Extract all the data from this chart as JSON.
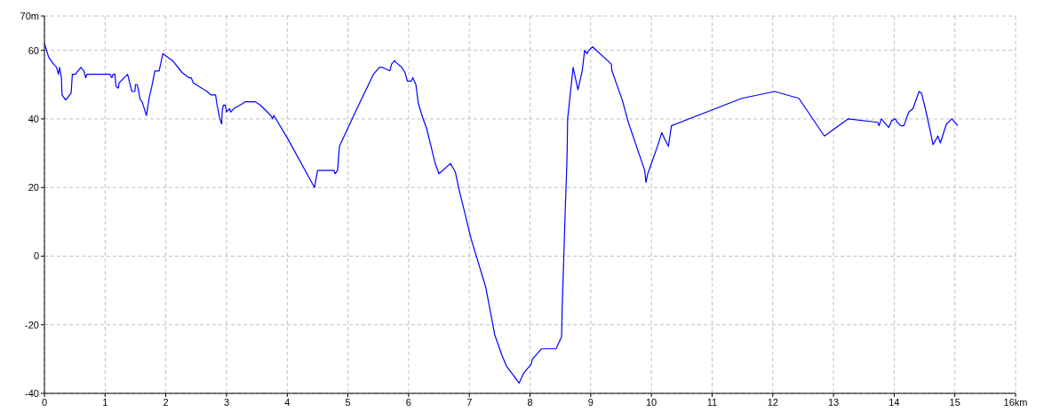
{
  "chart_data": {
    "type": "line",
    "x": [
      0,
      0.07,
      0.15,
      0.2,
      0.23,
      0.25,
      0.28,
      0.29,
      0.35,
      0.44,
      0.46,
      0.51,
      0.6,
      0.65,
      0.68,
      0.7,
      1.08,
      1.11,
      1.13,
      1.16,
      1.18,
      1.22,
      1.23,
      1.37,
      1.44,
      1.49,
      1.5,
      1.53,
      1.58,
      1.61,
      1.68,
      1.73,
      1.77,
      1.82,
      1.89,
      1.95,
      1.99,
      2.11,
      2.27,
      2.38,
      2.42,
      2.45,
      2.68,
      2.74,
      2.82,
      2.84,
      2.89,
      2.92,
      2.93,
      2.95,
      2.98,
      3.0,
      3.05,
      3.07,
      3.12,
      3.27,
      3.31,
      3.47,
      3.56,
      3.73,
      3.76,
      3.78,
      4.0,
      4.45,
      4.5,
      4.77,
      4.79,
      4.83,
      4.86,
      5.11,
      5.42,
      5.52,
      5.57,
      5.69,
      5.72,
      5.77,
      5.79,
      5.89,
      5.94,
      5.98,
      6.04,
      6.07,
      6.12,
      6.16,
      6.23,
      6.3,
      6.37,
      6.43,
      6.5,
      6.69,
      6.77,
      6.83,
      6.92,
      7.03,
      7.27,
      7.42,
      7.54,
      7.61,
      7.78,
      7.82,
      7.9,
      7.95,
      8.02,
      8.04,
      8.19,
      8.43,
      8.52,
      8.53,
      8.56,
      8.58,
      8.61,
      8.62,
      8.71,
      8.79,
      8.86,
      8.9,
      8.94,
      8.97,
      9.03,
      9.34,
      9.35,
      9.52,
      9.62,
      9.89,
      9.91,
      9.94,
      10.11,
      10.17,
      10.21,
      10.28,
      10.33,
      11.49,
      12.03,
      12.43,
      12.85,
      13.24,
      13.73,
      13.75,
      13.79,
      13.91,
      13.96,
      14.02,
      14.05,
      14.11,
      14.16,
      14.24,
      14.31,
      14.37,
      14.41,
      14.45,
      14.52,
      14.6,
      14.64,
      14.72,
      14.76,
      14.86,
      14.95,
      15.05
    ],
    "values": [
      62,
      58,
      56,
      55,
      53,
      55,
      52,
      47,
      45.5,
      47.5,
      53,
      53,
      55,
      54,
      52,
      53,
      53,
      52,
      53,
      53,
      49.5,
      49,
      50.5,
      53,
      48,
      48,
      50,
      50,
      45.5,
      45,
      41,
      46.5,
      49.5,
      54,
      54,
      59,
      58.5,
      57,
      53.5,
      52,
      52,
      50.5,
      48,
      47,
      47,
      44.5,
      40,
      38.5,
      42.5,
      44,
      44,
      42,
      43,
      42,
      43,
      44.5,
      45,
      45,
      44,
      41,
      40,
      41,
      34.5,
      20,
      25,
      25,
      24,
      25,
      32,
      41.5,
      53,
      55,
      55,
      54,
      56,
      57,
      56.5,
      55,
      53.5,
      51,
      51,
      52,
      50,
      44.5,
      40.5,
      37,
      32,
      27.5,
      24,
      27,
      24.5,
      19.5,
      13,
      5,
      -9,
      -23,
      -29,
      -32,
      -36,
      -37,
      -34,
      -33,
      -31.5,
      -30,
      -27,
      -27,
      -23.5,
      -15,
      1.5,
      13,
      28.5,
      40,
      55,
      48.5,
      54,
      60,
      59,
      60,
      61,
      56,
      54,
      45.5,
      39,
      25,
      21.5,
      24,
      32.5,
      36,
      34.5,
      32,
      38,
      46,
      48,
      46,
      35,
      40,
      39,
      38,
      40,
      37.5,
      39.5,
      40,
      39,
      38,
      38,
      42,
      43,
      46,
      48,
      47.5,
      42.5,
      36,
      32.5,
      35,
      33,
      38.5,
      40,
      38
    ],
    "color": "#0000ff",
    "xlim": [
      0,
      16
    ],
    "xticks": [
      0,
      1,
      2,
      3,
      4,
      5,
      6,
      7,
      8,
      9,
      10,
      11,
      12,
      13,
      14,
      15,
      {
        "value": 16,
        "label": "16km"
      }
    ],
    "ylim": [
      -40,
      70
    ],
    "yticks": [
      -40,
      -20,
      0,
      20,
      40,
      60,
      {
        "value": 70,
        "label": "70m"
      }
    ],
    "grid": true,
    "marker": "none",
    "line_style": "solid"
  }
}
